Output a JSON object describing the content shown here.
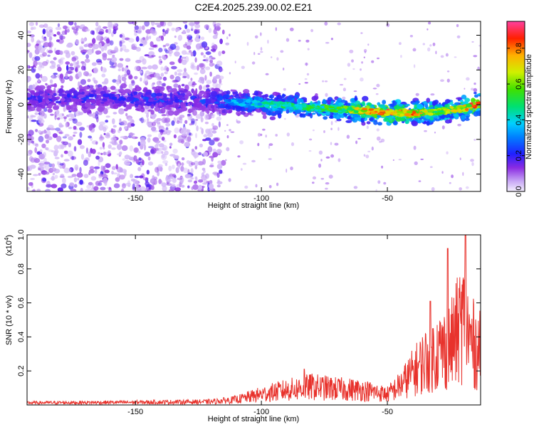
{
  "page": {
    "title": "C2E4.2025.239.00.02.E21"
  },
  "chart_data": [
    {
      "type": "heatmap",
      "title": "",
      "xlabel": "Height of straight line (km)",
      "ylabel": "Frequency (Hz)",
      "xlim": [
        -193,
        -13
      ],
      "ylim": [
        -50,
        48
      ],
      "xticks": [
        -150,
        -100,
        -50
      ],
      "xtick_labels": [
        "-150",
        "-100",
        "-50"
      ],
      "yticks": [
        -40,
        -20,
        0,
        20,
        40
      ],
      "ytick_labels": [
        "-40",
        "-20",
        "0",
        "20",
        "40"
      ],
      "colorbar": {
        "label": "Normalized spectral amplitude",
        "range": [
          0,
          0.95
        ],
        "ticks": [
          0.0,
          0.2,
          0.4,
          0.6,
          0.8
        ],
        "tick_labels": [
          "0.0",
          "0.2",
          "0.4",
          "0.6",
          "0.8"
        ]
      },
      "ridge": {
        "x": [
          -193,
          -160,
          -150,
          -140,
          -130,
          -120,
          -110,
          -100,
          -90,
          -80,
          -70,
          -60,
          -50,
          -40,
          -30,
          -20,
          -13
        ],
        "y": [
          4,
          4,
          3.5,
          3,
          2.5,
          2,
          1.5,
          0.5,
          -0.5,
          -1.5,
          -2.5,
          -3.5,
          -4.5,
          -5,
          -4,
          -2,
          0.5
        ],
        "amplitude": [
          0.25,
          0.25,
          0.28,
          0.28,
          0.28,
          0.3,
          0.38,
          0.45,
          0.5,
          0.52,
          0.55,
          0.75,
          0.85,
          0.8,
          0.65,
          0.7,
          0.95
        ]
      },
      "noise_region_x": [
        -193,
        -115
      ],
      "grid": false,
      "legend": "colorbar-right"
    },
    {
      "type": "line",
      "title": "",
      "xlabel": "Height of straight line (km)",
      "ylabel": "SNR (10 * v/v)",
      "y_multiplier": "(x10",
      "y_multiplier_exp": "4",
      "y_multiplier_close": ")",
      "xlim": [
        -193,
        -13
      ],
      "ylim": [
        0,
        1.0
      ],
      "xticks": [
        -150,
        -100,
        -50
      ],
      "xtick_labels": [
        "-150",
        "-100",
        "-50"
      ],
      "yticks": [
        0.2,
        0.4,
        0.6,
        0.8,
        1.0
      ],
      "ytick_labels": [
        "0.2",
        "0.4",
        "0.6",
        "0.8",
        "1.0"
      ],
      "color": "#e8322c",
      "envelope": {
        "x": [
          -193,
          -150,
          -120,
          -110,
          -100,
          -90,
          -80,
          -70,
          -60,
          -50,
          -45,
          -40,
          -35,
          -30,
          -25,
          -20,
          -17,
          -13
        ],
        "y": [
          0.02,
          0.025,
          0.03,
          0.05,
          0.1,
          0.14,
          0.17,
          0.15,
          0.14,
          0.1,
          0.18,
          0.3,
          0.42,
          0.5,
          0.55,
          0.8,
          0.6,
          0.5
        ]
      },
      "peaks": [
        {
          "x": -26,
          "y": 0.92
        },
        {
          "x": -19,
          "y": 1.0
        },
        {
          "x": -33,
          "y": 0.61
        },
        {
          "x": -83,
          "y": 0.21
        }
      ],
      "grid": false
    }
  ]
}
